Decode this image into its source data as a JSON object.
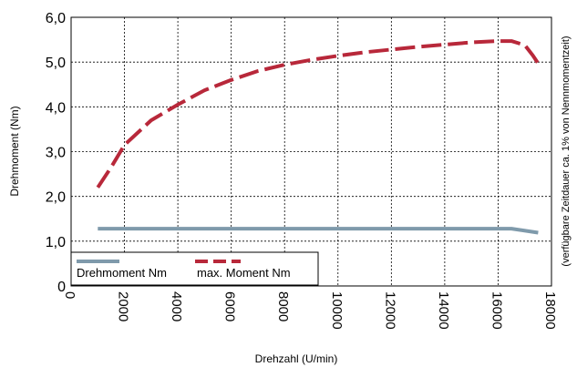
{
  "chart_data": {
    "type": "line",
    "xlabel": "Drehzahl (U/min)",
    "ylabel": "Drehmoment (Nm)",
    "side_note": "(verfügbare Zeitdauer ca. 1% von Nennmomentzeit)",
    "xlim": [
      0,
      18000
    ],
    "ylim": [
      0,
      6
    ],
    "x_ticks": [
      0,
      2000,
      4000,
      6000,
      8000,
      10000,
      12000,
      14000,
      16000,
      18000
    ],
    "x_tick_labels": [
      "0",
      "2000",
      "4000",
      "6000",
      "8000",
      "10000",
      "12000",
      "14000",
      "16000",
      "18000"
    ],
    "y_ticks": [
      0,
      1,
      2,
      3,
      4,
      5,
      6
    ],
    "y_tick_labels": [
      "0",
      "1,0",
      "2,0",
      "3,0",
      "4,0",
      "5,0",
      "6,0"
    ],
    "grid": true,
    "legend_position": "bottom-left",
    "series": [
      {
        "name": "Drehmoment Nm",
        "color": "#7f9aab",
        "style": "solid",
        "x": [
          1000,
          4000,
          8000,
          12000,
          16500,
          17500
        ],
        "y": [
          1.28,
          1.28,
          1.28,
          1.28,
          1.28,
          1.19
        ]
      },
      {
        "name": "max. Moment Nm",
        "color": "#b8283a",
        "style": "dashed",
        "x": [
          1000,
          1500,
          2000,
          3000,
          4000,
          5000,
          6000,
          7000,
          8000,
          9000,
          10000,
          11000,
          12000,
          13000,
          14000,
          15000,
          16000,
          16500,
          17000,
          17300,
          17600
        ],
        "y": [
          2.2,
          2.65,
          3.15,
          3.7,
          4.05,
          4.37,
          4.6,
          4.8,
          4.94,
          5.05,
          5.14,
          5.22,
          5.28,
          5.34,
          5.39,
          5.44,
          5.47,
          5.47,
          5.38,
          5.15,
          4.88
        ]
      }
    ]
  }
}
